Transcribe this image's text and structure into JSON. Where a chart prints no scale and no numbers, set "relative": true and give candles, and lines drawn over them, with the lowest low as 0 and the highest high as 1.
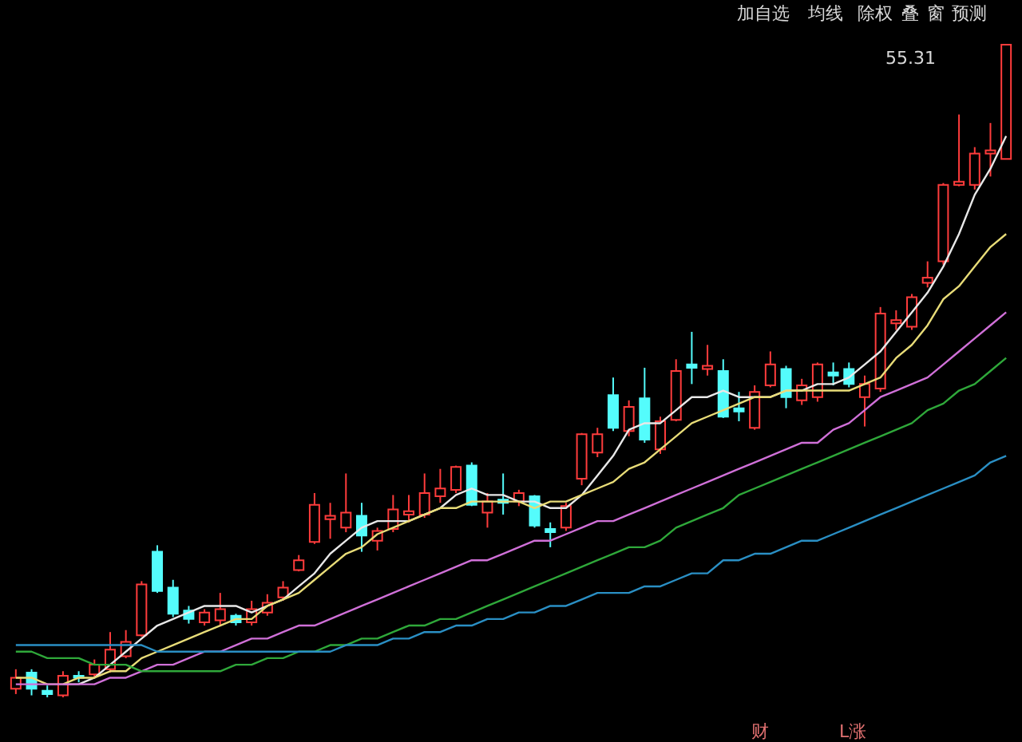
{
  "chart_data": {
    "type": "candlestick",
    "relative": true,
    "categories": [
      null,
      null,
      null,
      null,
      null,
      null,
      null,
      null,
      null,
      null,
      null,
      null,
      null,
      null,
      null,
      null,
      null,
      null,
      null,
      null,
      null,
      null,
      null,
      null,
      null,
      null,
      null,
      null,
      null,
      null,
      null,
      null,
      null,
      null,
      null,
      null,
      null,
      null,
      null,
      null,
      null,
      null,
      null,
      null,
      null,
      null,
      null,
      null,
      null,
      null,
      null,
      null,
      null,
      null,
      null,
      null,
      null,
      null,
      null,
      null,
      null,
      null,
      null,
      null
    ],
    "ohlc": [
      [
        0.013,
        0.043,
        0.005,
        0.03
      ],
      [
        0.038,
        0.043,
        0.003,
        0.013
      ],
      [
        0.01,
        0.018,
        0,
        0.005
      ],
      [
        0.003,
        0.04,
        0,
        0.033
      ],
      [
        0.033,
        0.04,
        0.023,
        0.03
      ],
      [
        0.035,
        0.058,
        0.03,
        0.05
      ],
      [
        0.043,
        0.1,
        0.038,
        0.073
      ],
      [
        0.063,
        0.103,
        0.06,
        0.085
      ],
      [
        0.095,
        0.178,
        0.093,
        0.173
      ],
      [
        0.223,
        0.233,
        0.16,
        0.163
      ],
      [
        0.168,
        0.18,
        0.123,
        0.128
      ],
      [
        0.133,
        0.14,
        0.113,
        0.12
      ],
      [
        0.115,
        0.135,
        0.11,
        0.13
      ],
      [
        0.118,
        0.16,
        0.11,
        0.135
      ],
      [
        0.125,
        0.128,
        0.11,
        0.115
      ],
      [
        0.115,
        0.148,
        0.11,
        0.135
      ],
      [
        0.13,
        0.158,
        0.125,
        0.145
      ],
      [
        0.153,
        0.178,
        0.148,
        0.168
      ],
      [
        0.195,
        0.218,
        0.193,
        0.21
      ],
      [
        0.238,
        0.313,
        0.235,
        0.295
      ],
      [
        0.273,
        0.298,
        0.243,
        0.278
      ],
      [
        0.26,
        0.343,
        0.253,
        0.283
      ],
      [
        0.278,
        0.298,
        0.223,
        0.248
      ],
      [
        0.24,
        0.26,
        0.225,
        0.255
      ],
      [
        0.258,
        0.31,
        0.253,
        0.288
      ],
      [
        0.28,
        0.31,
        0.268,
        0.285
      ],
      [
        0.28,
        0.343,
        0.275,
        0.313
      ],
      [
        0.308,
        0.35,
        0.298,
        0.32
      ],
      [
        0.318,
        0.355,
        0.313,
        0.353
      ],
      [
        0.355,
        0.36,
        0.293,
        0.295
      ],
      [
        0.283,
        0.313,
        0.26,
        0.3
      ],
      [
        0.303,
        0.343,
        0.28,
        0.298
      ],
      [
        0.3,
        0.318,
        0.293,
        0.313
      ],
      [
        0.308,
        0.31,
        0.26,
        0.263
      ],
      [
        0.258,
        0.268,
        0.23,
        0.253
      ],
      [
        0.26,
        0.298,
        0.255,
        0.293
      ],
      [
        0.335,
        0.405,
        0.325,
        0.403
      ],
      [
        0.375,
        0.413,
        0.368,
        0.403
      ],
      [
        0.463,
        0.49,
        0.408,
        0.413
      ],
      [
        0.408,
        0.455,
        0.4,
        0.445
      ],
      [
        0.458,
        0.505,
        0.39,
        0.395
      ],
      [
        0.38,
        0.43,
        0.373,
        0.423
      ],
      [
        0.425,
        0.518,
        0.423,
        0.5
      ],
      [
        0.51,
        0.56,
        0.48,
        0.505
      ],
      [
        0.503,
        0.54,
        0.493,
        0.508
      ],
      [
        0.5,
        0.518,
        0.428,
        0.43
      ],
      [
        0.443,
        0.468,
        0.423,
        0.438
      ],
      [
        0.413,
        0.478,
        0.41,
        0.468
      ],
      [
        0.478,
        0.53,
        0.475,
        0.51
      ],
      [
        0.503,
        0.508,
        0.443,
        0.46
      ],
      [
        0.455,
        0.488,
        0.448,
        0.478
      ],
      [
        0.46,
        0.513,
        0.453,
        0.51
      ],
      [
        0.498,
        0.513,
        0.478,
        0.493
      ],
      [
        0.503,
        0.513,
        0.475,
        0.48
      ],
      [
        0.46,
        0.493,
        0.415,
        0.48
      ],
      [
        0.473,
        0.598,
        0.468,
        0.588
      ],
      [
        0.573,
        0.593,
        0.563,
        0.578
      ],
      [
        0.568,
        0.618,
        0.563,
        0.613
      ],
      [
        0.635,
        0.668,
        0.628,
        0.643
      ],
      [
        0.668,
        0.788,
        0.663,
        0.785
      ],
      [
        0.785,
        0.893,
        0.783,
        0.79
      ],
      [
        0.785,
        0.843,
        0.778,
        0.833
      ],
      [
        0.833,
        0.88,
        0.798,
        0.838
      ],
      [
        0.825,
        1,
        0.825,
        1
      ]
    ],
    "colors": [
      "#ff3c3c",
      "#54fcfc",
      "#54fcfc",
      "#ff3c3c",
      "#54fcfc",
      "#ff3c3c",
      "#ff3c3c",
      "#ff3c3c",
      "#ff3c3c",
      "#54fcfc",
      "#54fcfc",
      "#54fcfc",
      "#ff3c3c",
      "#ff3c3c",
      "#54fcfc",
      "#ff3c3c",
      "#ff3c3c",
      "#ff3c3c",
      "#ff3c3c",
      "#ff3c3c",
      "#ff3c3c",
      "#ff3c3c",
      "#54fcfc",
      "#ff3c3c",
      "#ff3c3c",
      "#ff3c3c",
      "#ff3c3c",
      "#ff3c3c",
      "#ff3c3c",
      "#54fcfc",
      "#ff3c3c",
      "#54fcfc",
      "#ff3c3c",
      "#54fcfc",
      "#54fcfc",
      "#ff3c3c",
      "#ff3c3c",
      "#ff3c3c",
      "#54fcfc",
      "#ff3c3c",
      "#54fcfc",
      "#ff3c3c",
      "#ff3c3c",
      "#54fcfc",
      "#ff3c3c",
      "#54fcfc",
      "#54fcfc",
      "#ff3c3c",
      "#ff3c3c",
      "#54fcfc",
      "#ff3c3c",
      "#ff3c3c",
      "#54fcfc",
      "#54fcfc",
      "#ff3c3c",
      "#ff3c3c",
      "#ff3c3c",
      "#ff3c3c",
      "#ff3c3c",
      "#ff3c3c",
      "#ff3c3c",
      "#ff3c3c",
      "#ff3c3c",
      "#ff3c3c"
    ],
    "series": [
      {
        "type": "line",
        "color": "#e8e8e8",
        "values": [
          null,
          null,
          null,
          0.02,
          0.02,
          0.03,
          0.05,
          0.07,
          0.09,
          0.11,
          0.12,
          0.13,
          0.14,
          0.14,
          0.14,
          0.13,
          0.14,
          0.15,
          0.17,
          0.19,
          0.22,
          0.24,
          0.26,
          0.27,
          0.27,
          0.27,
          0.28,
          0.29,
          0.31,
          0.32,
          0.31,
          0.31,
          0.3,
          0.3,
          0.29,
          0.29,
          0.31,
          0.34,
          0.37,
          0.41,
          0.42,
          0.42,
          0.44,
          0.46,
          0.46,
          0.47,
          0.46,
          0.46,
          0.46,
          0.47,
          0.47,
          0.48,
          0.48,
          0.49,
          0.51,
          0.53,
          0.56,
          0.59,
          0.62,
          0.66,
          0.71,
          0.77,
          0.81,
          0.86
        ]
      },
      {
        "type": "line",
        "color": "#e8dc78",
        "values": [
          0.03,
          0.03,
          0.02,
          0.02,
          0.03,
          0.03,
          0.04,
          0.04,
          0.06,
          0.07,
          0.08,
          0.09,
          0.1,
          0.11,
          0.12,
          0.12,
          0.14,
          0.15,
          0.16,
          0.18,
          0.2,
          0.22,
          0.23,
          0.25,
          0.26,
          0.27,
          0.28,
          0.29,
          0.29,
          0.3,
          0.3,
          0.3,
          0.3,
          0.29,
          0.3,
          0.3,
          0.31,
          0.32,
          0.33,
          0.35,
          0.36,
          0.38,
          0.4,
          0.42,
          0.43,
          0.44,
          0.45,
          0.46,
          0.46,
          0.47,
          0.47,
          0.47,
          0.47,
          0.47,
          0.48,
          0.49,
          0.52,
          0.54,
          0.57,
          0.61,
          0.63,
          0.66,
          0.69,
          0.71
        ]
      },
      {
        "type": "line",
        "color": "#d070d8",
        "values": [
          0.02,
          0.02,
          0.02,
          0.02,
          0.02,
          0.02,
          0.03,
          0.03,
          0.04,
          0.05,
          0.05,
          0.06,
          0.07,
          0.07,
          0.08,
          0.09,
          0.09,
          0.1,
          0.11,
          0.11,
          0.12,
          0.13,
          0.14,
          0.15,
          0.16,
          0.17,
          0.18,
          0.19,
          0.2,
          0.21,
          0.21,
          0.22,
          0.23,
          0.24,
          0.24,
          0.25,
          0.26,
          0.27,
          0.27,
          0.28,
          0.29,
          0.3,
          0.31,
          0.32,
          0.33,
          0.34,
          0.35,
          0.36,
          0.37,
          0.38,
          0.39,
          0.39,
          0.41,
          0.42,
          0.44,
          0.46,
          0.47,
          0.48,
          0.49,
          0.51,
          0.53,
          0.55,
          0.57,
          0.59
        ]
      },
      {
        "type": "line",
        "color": "#2fa83a",
        "values": [
          0.07,
          0.07,
          0.06,
          0.06,
          0.06,
          0.05,
          0.05,
          0.05,
          0.04,
          0.04,
          0.04,
          0.04,
          0.04,
          0.04,
          0.05,
          0.05,
          0.06,
          0.06,
          0.07,
          0.07,
          0.08,
          0.08,
          0.09,
          0.09,
          0.1,
          0.11,
          0.11,
          0.12,
          0.12,
          0.13,
          0.14,
          0.15,
          0.16,
          0.17,
          0.18,
          0.19,
          0.2,
          0.21,
          0.22,
          0.23,
          0.23,
          0.24,
          0.26,
          0.27,
          0.28,
          0.29,
          0.31,
          0.32,
          0.33,
          0.34,
          0.35,
          0.36,
          0.37,
          0.38,
          0.39,
          0.4,
          0.41,
          0.42,
          0.44,
          0.45,
          0.47,
          0.48,
          0.5,
          0.52
        ]
      },
      {
        "type": "line",
        "color": "#2a8fc4",
        "values": [
          0.08,
          0.08,
          0.08,
          0.08,
          0.08,
          0.08,
          0.08,
          0.08,
          0.08,
          0.07,
          0.07,
          0.07,
          0.07,
          0.07,
          0.07,
          0.07,
          0.07,
          0.07,
          0.07,
          0.07,
          0.07,
          0.08,
          0.08,
          0.08,
          0.09,
          0.09,
          0.1,
          0.1,
          0.11,
          0.11,
          0.12,
          0.12,
          0.13,
          0.13,
          0.14,
          0.14,
          0.15,
          0.16,
          0.16,
          0.16,
          0.17,
          0.17,
          0.18,
          0.19,
          0.19,
          0.21,
          0.21,
          0.22,
          0.22,
          0.23,
          0.24,
          0.24,
          0.25,
          0.26,
          0.27,
          0.28,
          0.29,
          0.3,
          0.31,
          0.32,
          0.33,
          0.34,
          0.36,
          0.37
        ]
      }
    ],
    "annotations": [
      "55.31",
      "加自选",
      "均线",
      "除权",
      "叠",
      "窗",
      "预测",
      "财",
      "L涨"
    ]
  }
}
